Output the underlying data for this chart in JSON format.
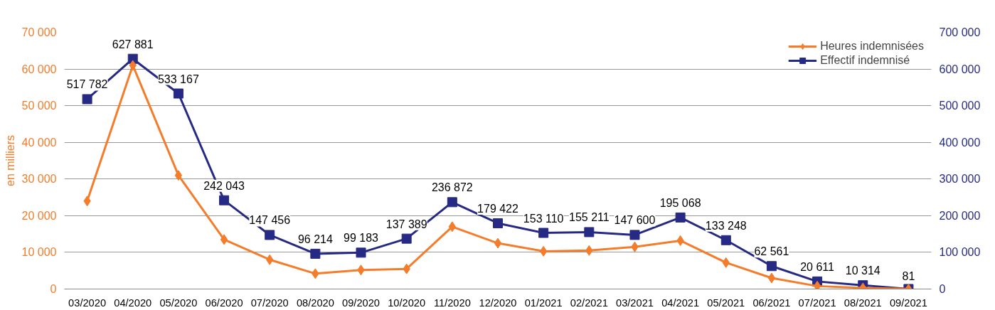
{
  "chart_data": {
    "type": "line",
    "ylabel": "en milliers",
    "categories": [
      "03/2020",
      "04/2020",
      "05/2020",
      "06/2020",
      "07/2020",
      "08/2020",
      "09/2020",
      "10/2020",
      "11/2020",
      "12/2020",
      "01/2021",
      "02/2021",
      "03/2021",
      "04/2021",
      "05/2021",
      "06/2021",
      "07/2021",
      "08/2021",
      "09/2021"
    ],
    "series": [
      {
        "name": "Heures indemnisées",
        "color": "#f47c2a",
        "marker": "diamond",
        "values": [
          24000,
          61000,
          31000,
          13500,
          8000,
          4200,
          5200,
          5500,
          17000,
          12500,
          10300,
          10500,
          11500,
          13200,
          7200,
          3000,
          800,
          300,
          0
        ]
      },
      {
        "name": "Effectif indemnisé",
        "color": "#262a84",
        "marker": "square",
        "axis": "y2",
        "values": [
          517782,
          627881,
          533167,
          242043,
          147456,
          96214,
          99183,
          137389,
          236872,
          179422,
          153110,
          155211,
          147600,
          195068,
          133248,
          62561,
          20611,
          10314,
          81
        ],
        "value_labels": [
          "517 782",
          "627 881",
          "533 167",
          "242 043",
          "147 456",
          "96 214",
          "99 183",
          "137 389",
          "236 872",
          "179 422",
          "153 110",
          "155 211",
          "147 600",
          "195 068",
          "133 248",
          "62 561",
          "20 611",
          "10 314",
          "81"
        ]
      }
    ],
    "ylim": [
      0,
      70000
    ],
    "yticks": [
      {
        "value": 0,
        "label": "0"
      },
      {
        "value": 10000,
        "label": "10 000"
      },
      {
        "value": 20000,
        "label": "20 000"
      },
      {
        "value": 30000,
        "label": "30 000"
      },
      {
        "value": 40000,
        "label": "40 000"
      },
      {
        "value": 50000,
        "label": "50 000"
      },
      {
        "value": 60000,
        "label": "60 000"
      },
      {
        "value": 70000,
        "label": "70 000"
      }
    ],
    "y2lim": [
      0,
      700000
    ],
    "y2ticks": [
      {
        "value": 0,
        "label": "0"
      },
      {
        "value": 100000,
        "label": "100 000"
      },
      {
        "value": 200000,
        "label": "200 000"
      },
      {
        "value": 300000,
        "label": "300 000"
      },
      {
        "value": 400000,
        "label": "400 000"
      },
      {
        "value": 500000,
        "label": "500 000"
      },
      {
        "value": 600000,
        "label": "600 000"
      },
      {
        "value": 700000,
        "label": "700 000"
      }
    ],
    "grid": "y",
    "legend": "top right",
    "line_style": "solid"
  }
}
